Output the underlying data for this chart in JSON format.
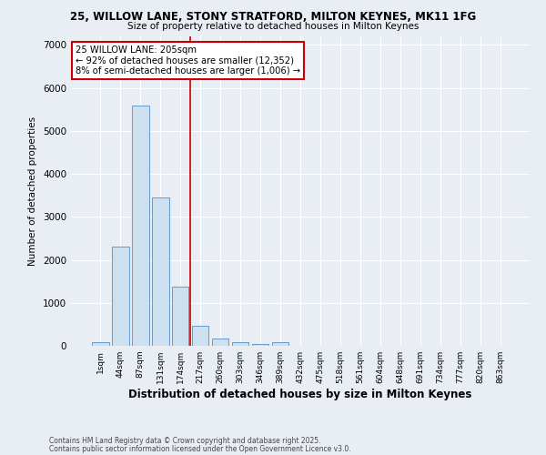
{
  "title_line1": "25, WILLOW LANE, STONY STRATFORD, MILTON KEYNES, MK11 1FG",
  "title_line2": "Size of property relative to detached houses in Milton Keynes",
  "xlabel": "Distribution of detached houses by size in Milton Keynes",
  "ylabel": "Number of detached properties",
  "bin_labels": [
    "1sqm",
    "44sqm",
    "87sqm",
    "131sqm",
    "174sqm",
    "217sqm",
    "260sqm",
    "303sqm",
    "346sqm",
    "389sqm",
    "432sqm",
    "475sqm",
    "518sqm",
    "561sqm",
    "604sqm",
    "648sqm",
    "691sqm",
    "734sqm",
    "777sqm",
    "820sqm",
    "863sqm"
  ],
  "bar_heights": [
    75,
    2300,
    5600,
    3450,
    1375,
    475,
    160,
    75,
    50,
    75,
    0,
    0,
    0,
    0,
    0,
    0,
    0,
    0,
    0,
    0,
    0
  ],
  "bar_color": "#cce0f0",
  "bar_edge_color": "#6699cc",
  "red_line_x": 4.5,
  "red_line_color": "#cc0000",
  "annotation_text": "25 WILLOW LANE: 205sqm\n← 92% of detached houses are smaller (12,352)\n8% of semi-detached houses are larger (1,006) →",
  "annotation_box_color": "#ffffff",
  "annotation_box_edge": "#cc0000",
  "ylim": [
    0,
    7200
  ],
  "yticks": [
    0,
    1000,
    2000,
    3000,
    4000,
    5000,
    6000,
    7000
  ],
  "footnote1": "Contains HM Land Registry data © Crown copyright and database right 2025.",
  "footnote2": "Contains public sector information licensed under the Open Government Licence v3.0.",
  "bg_color": "#e8eef4",
  "grid_color": "#ffffff"
}
